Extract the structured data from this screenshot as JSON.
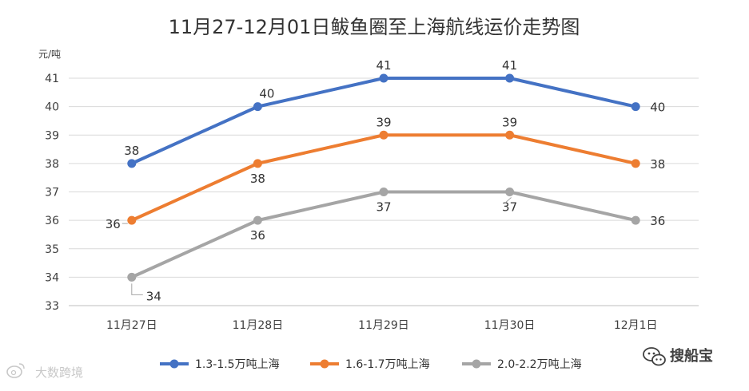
{
  "chart_data": {
    "type": "line",
    "title": "11月27-12月01日鲅鱼圈至上海航线运价走势图",
    "ylabel": "元/吨",
    "xlabel": "",
    "categories": [
      "11月27日",
      "11月28日",
      "11月29日",
      "11月30日",
      "12月1日"
    ],
    "ylim": [
      33,
      41
    ],
    "yticks": [
      33,
      34,
      35,
      36,
      37,
      38,
      39,
      40,
      41
    ],
    "grid": true,
    "legend_position": "bottom",
    "series": [
      {
        "name": "1.3-1.5万吨上海",
        "values": [
          38,
          40,
          41,
          41,
          40
        ],
        "color": "#4472c4"
      },
      {
        "name": "1.6-1.7万吨上海",
        "values": [
          36,
          38,
          39,
          39,
          38
        ],
        "color": "#ed7d31"
      },
      {
        "name": "2.0-2.2万吨上海",
        "values": [
          34,
          36,
          37,
          37,
          36
        ],
        "color": "#a5a5a5"
      }
    ]
  },
  "watermark": {
    "left_text": "大数跨境",
    "right_text": "搜船宝",
    "wechat_icon": "wechat-icon",
    "weibo_icon": "weibo-icon"
  }
}
